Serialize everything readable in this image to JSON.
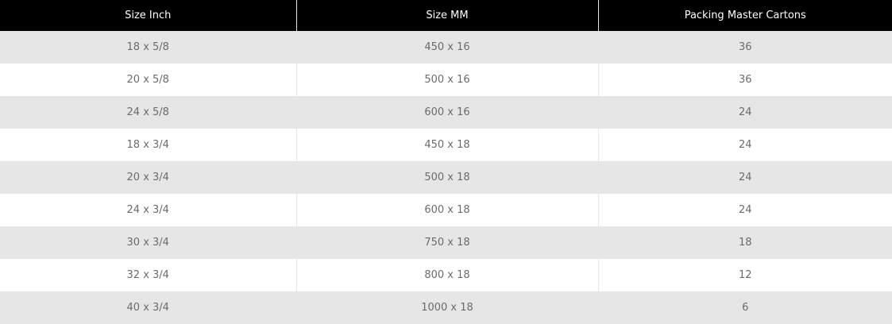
{
  "table": {
    "headers": [
      "Size Inch",
      "Size MM",
      "Packing Master Cartons"
    ],
    "rows": [
      [
        "18 x 5/8",
        "450 x 16",
        "36"
      ],
      [
        "20 x 5/8",
        "500 x 16",
        "36"
      ],
      [
        "24 x 5/8",
        "600 x 16",
        "24"
      ],
      [
        "18 x 3/4",
        "450 x 18",
        "24"
      ],
      [
        "20 x 3/4",
        "500 x 18",
        "24"
      ],
      [
        "24 x 3/4",
        "600 x 18",
        "24"
      ],
      [
        "30 x 3/4",
        "750 x 18",
        "18"
      ],
      [
        "32 x 3/4",
        "800 x 18",
        "12"
      ],
      [
        "40 x 3/4",
        "1000 x 18",
        "6"
      ]
    ]
  }
}
